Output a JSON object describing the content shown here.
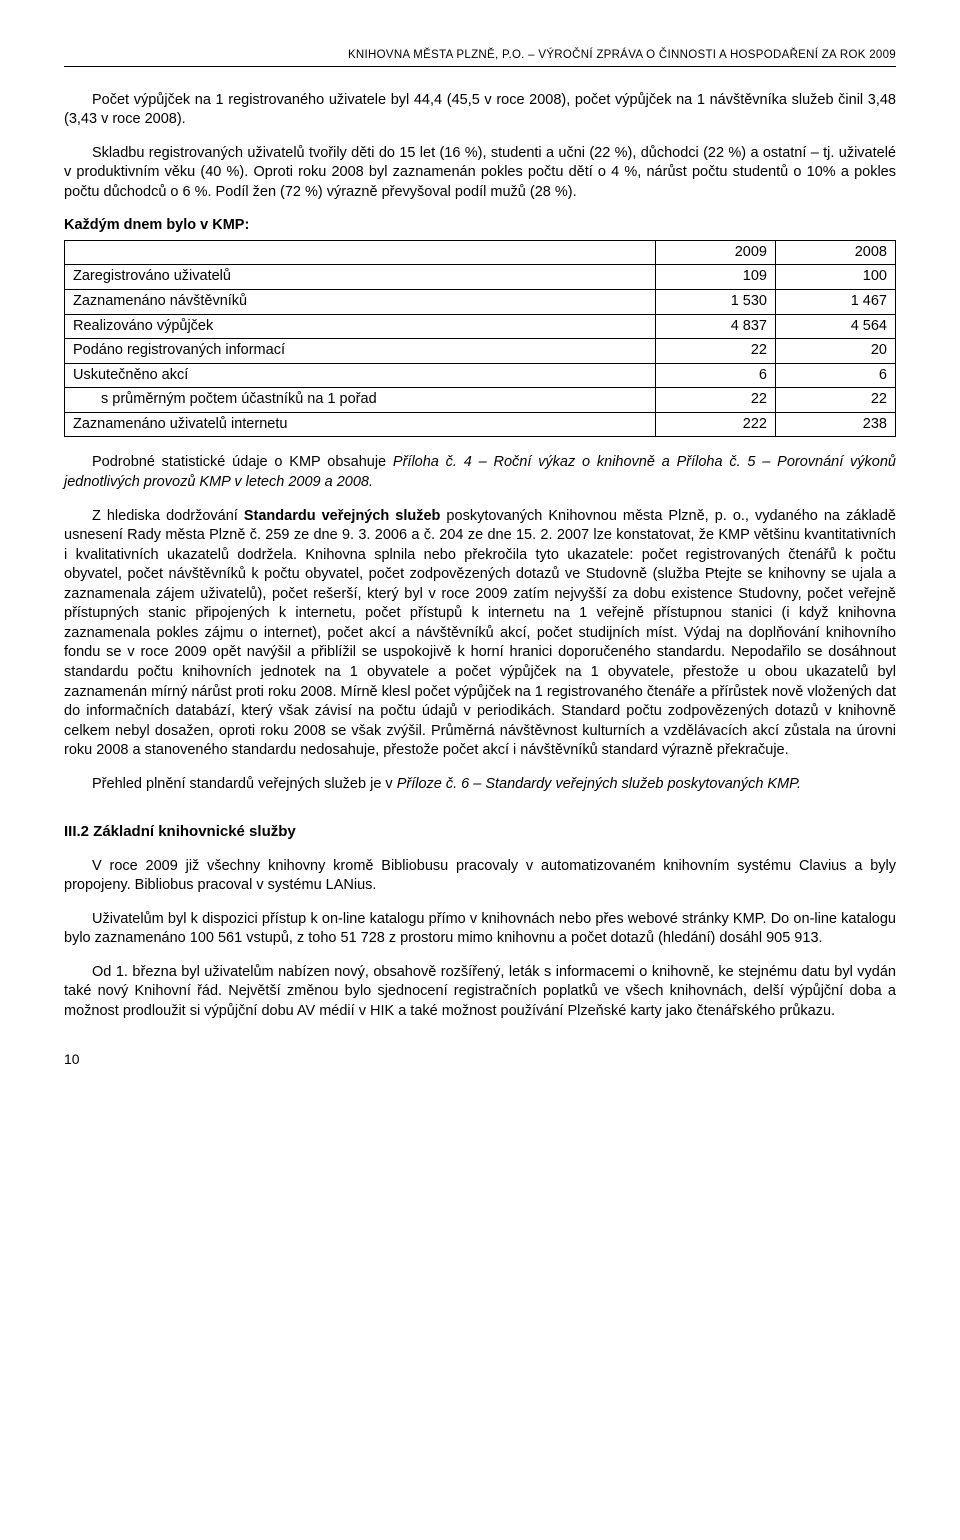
{
  "header": "KNIHOVNA MĚSTA PLZNĚ, P.O. – VÝROČNÍ ZPRÁVA O ČINNOSTI A HOSPODAŘENÍ ZA ROK 2009",
  "para1": "Počet výpůjček na 1 registrovaného uživatele byl 44,4 (45,5 v roce 2008), počet výpůjček na 1 návštěvníka služeb činil 3,48 (3,43 v roce 2008).",
  "para2": "Skladbu registrovaných uživatelů tvořily děti do 15 let (16 %), studenti a učni (22 %), důchodci (22 %) a ostatní – tj. uživatelé v produktivním věku (40 %). Oproti roku 2008 byl zaznamenán pokles počtu dětí o 4 %, nárůst počtu studentů o 10% a pokles počtu důchodců o 6 %. Podíl žen (72 %) výrazně převyšoval podíl mužů (28 %).",
  "table_intro": "Každým dnem bylo v KMP:",
  "table": {
    "columns": [
      "",
      "2009",
      "2008"
    ],
    "rows": [
      {
        "label": "Zaregistrováno uživatelů",
        "v2009": "109",
        "v2008": "100",
        "sub": false
      },
      {
        "label": "Zaznamenáno návštěvníků",
        "v2009": "1 530",
        "v2008": "1 467",
        "sub": false
      },
      {
        "label": "Realizováno výpůjček",
        "v2009": "4 837",
        "v2008": "4 564",
        "sub": false
      },
      {
        "label": "Podáno registrovaných informací",
        "v2009": "22",
        "v2008": "20",
        "sub": false
      },
      {
        "label": "Uskutečněno akcí",
        "v2009": "6",
        "v2008": "6",
        "sub": false
      },
      {
        "label": "s průměrným počtem účastníků na 1 pořad",
        "v2009": "22",
        "v2008": "22",
        "sub": true
      },
      {
        "label": "Zaznamenáno uživatelů internetu",
        "v2009": "222",
        "v2008": "238",
        "sub": false
      }
    ]
  },
  "para3_a": "Podrobné statistické údaje o KMP obsahuje ",
  "para3_b": "Příloha č. 4 – Roční výkaz o knihovně a Příloha č. 5 – Porovnání výkonů jednotlivých provozů KMP v letech 2009 a 2008.",
  "para4_a": "Z hlediska dodržování ",
  "para4_b": "Standardu veřejných služeb",
  "para4_c": " poskytovaných Knihovnou města Plzně, p. o., vydaného na základě usnesení Rady města Plzně č. 259 ze dne 9. 3. 2006 a č. 204 ze dne 15. 2. 2007 lze konstatovat, že KMP většinu kvantitativních i kvalitativních ukazatelů dodržela. Knihovna splnila nebo překročila tyto ukazatele: počet registrovaných čtenářů k počtu obyvatel, počet návštěvníků k počtu obyvatel, počet zodpovězených dotazů ve Studovně (služba Ptejte se knihovny se ujala a zaznamenala zájem uživatelů), počet rešerší, který byl v roce 2009 zatím nejvyšší za dobu existence Studovny, počet veřejně přístupných stanic připojených k internetu, počet přístupů k internetu na 1 veřejně přístupnou stanici (i když knihovna zaznamenala pokles zájmu o internet), počet akcí a návštěvníků akcí, počet studijních míst. Výdaj na doplňování knihovního fondu se v roce 2009 opět navýšil a přiblížil se uspokojivě k horní hranici doporučeného standardu. Nepodařilo se dosáhnout standardu počtu knihovních jednotek na 1 obyvatele a počet výpůjček na 1 obyvatele, přestože u obou ukazatelů byl zaznamenán mírný nárůst proti roku 2008. Mírně klesl počet výpůjček na 1 registrovaného čtenáře a přírůstek nově vložených dat do informačních databází, který však závisí na počtu údajů v periodikách. Standard počtu zodpovězených dotazů v knihovně celkem nebyl dosažen, oproti roku 2008 se však zvýšil. Průměrná návštěvnost kulturních a vzdělávacích akcí zůstala na úrovni roku 2008 a stanoveného standardu nedosahuje, přestože počet akcí i návštěvníků standard výrazně překračuje.",
  "para5_a": "Přehled plnění standardů veřejných služeb je v ",
  "para5_b": "Příloze č. 6 – Standardy veřejných služeb poskytovaných KMP.",
  "section_head": "III.2 Základní knihovnické služby",
  "para6": "V roce 2009 již všechny knihovny kromě Bibliobusu pracovaly v automatizovaném knihovním systému Clavius a byly propojeny. Bibliobus pracoval v systému LANius.",
  "para7": "Uživatelům byl k dispozici přístup k on-line katalogu přímo v knihovnách nebo přes webové stránky KMP. Do on-line katalogu bylo zaznamenáno 100 561 vstupů, z toho 51 728 z prostoru mimo knihovnu a počet dotazů (hledání) dosáhl 905 913.",
  "para8": "Od 1. března byl uživatelům nabízen nový, obsahově rozšířený, leták s informacemi o knihovně, ke stejnému datu byl vydán také nový Knihovní řád. Největší změnou bylo sjednocení registračních poplatků ve všech knihovnách, delší výpůjční doba a možnost prodloužit si výpůjční dobu AV médií v HIK a také možnost používání Plzeňské karty jako čtenářského průkazu.",
  "page_number": "10"
}
